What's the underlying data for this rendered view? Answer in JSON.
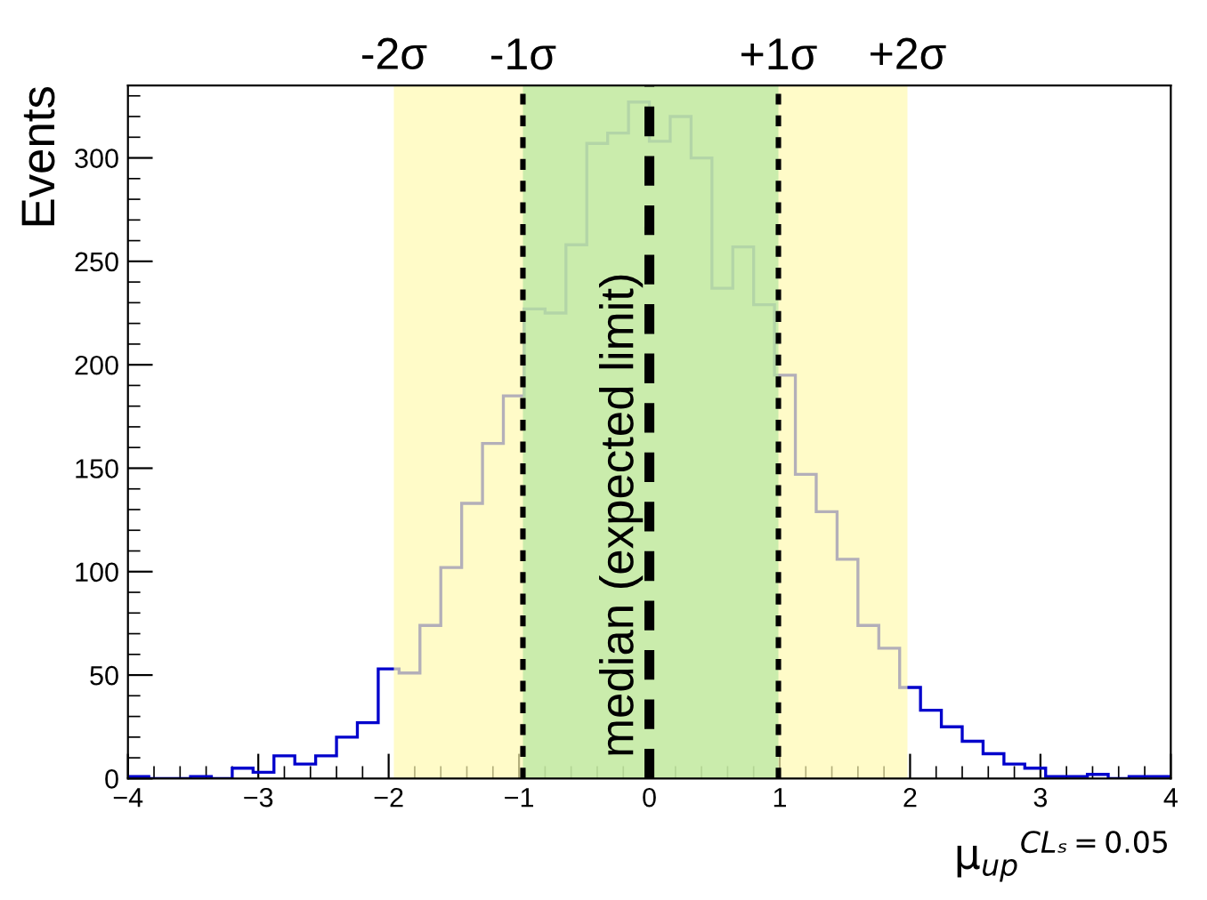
{
  "chart_data": {
    "type": "histogram",
    "xlabel": "μ$_{up}$$^{CLₛ=0.05}$",
    "ylabel": "Events",
    "bins": [
      -4.0,
      -3.84,
      -3.68,
      -3.52,
      -3.36,
      -3.2,
      -3.04,
      -2.88,
      -2.72,
      -2.56,
      -2.4,
      -2.24,
      -2.08,
      -1.92,
      -1.76,
      -1.6,
      -1.44,
      -1.28,
      -1.12,
      -0.96,
      -0.8,
      -0.64,
      -0.48,
      -0.32,
      -0.16,
      0.0,
      0.16,
      0.32,
      0.48,
      0.64,
      0.8,
      0.96,
      1.12,
      1.28,
      1.44,
      1.6,
      1.76,
      1.92,
      2.08,
      2.24,
      2.4,
      2.56,
      2.72,
      2.88,
      3.04,
      3.2,
      3.36,
      3.52,
      3.68,
      3.84,
      4.0
    ],
    "values": [
      1,
      0,
      0,
      1,
      0,
      5,
      3,
      11,
      7,
      11,
      20,
      27,
      53,
      51,
      74,
      102,
      133,
      162,
      185,
      227,
      225,
      258,
      307,
      312,
      327,
      308,
      320,
      300,
      237,
      257,
      229,
      195,
      147,
      129,
      106,
      74,
      63,
      44,
      33,
      25,
      18,
      12,
      7,
      5,
      1,
      1,
      2,
      0,
      1,
      1
    ],
    "color": "#0000cc",
    "xlim": [
      -4,
      4
    ],
    "xticks": [
      {
        "value": -4,
        "label": "−4"
      },
      {
        "value": -3,
        "label": "−3"
      },
      {
        "value": -2,
        "label": "−2"
      },
      {
        "value": -1,
        "label": "−1"
      },
      0,
      1,
      2,
      3,
      4
    ],
    "ylim": [
      0,
      335
    ],
    "yticks": [
      0,
      50,
      100,
      150,
      200,
      250,
      300
    ],
    "bands": [
      {
        "axis": "x",
        "from": -1.96,
        "to": 1.98,
        "color": "#fff9b0"
      },
      {
        "axis": "x",
        "from": -0.97,
        "to": 0.99,
        "color": "#b4e6a0"
      }
    ],
    "ref_lines": [
      {
        "axis": "x",
        "value": -0.97,
        "label": "-1σ",
        "line_style": "dotted"
      },
      {
        "axis": "x",
        "value": 0.99,
        "label": "+1σ",
        "line_style": "dotted"
      },
      {
        "axis": "x",
        "value": 0.0,
        "label": "median (expected limit)",
        "line_style": "dashed"
      }
    ],
    "annotations": [
      {
        "text": "-2σ",
        "x": -1.96,
        "y": 335
      },
      {
        "text": "+2σ",
        "x": 1.98,
        "y": 335
      }
    ],
    "grid": false
  }
}
